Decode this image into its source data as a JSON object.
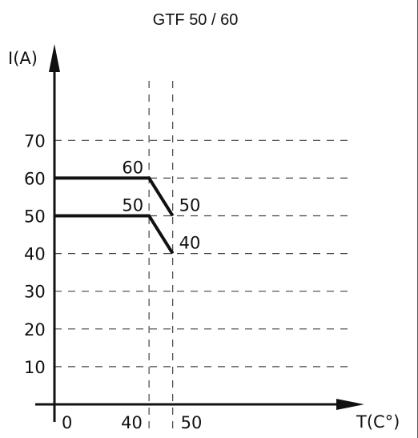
{
  "chart_data": {
    "type": "line",
    "title": "GTF 50 / 60",
    "xlabel": "T(C°)",
    "ylabel": "I(A)",
    "x_ticks": [
      "0",
      "40",
      "50"
    ],
    "x_tick_values": [
      0,
      40,
      50
    ],
    "y_ticks": [
      "10",
      "20",
      "30",
      "40",
      "50",
      "60",
      "70"
    ],
    "y_tick_values": [
      10,
      20,
      30,
      40,
      50,
      60,
      70
    ],
    "xlim": [
      0,
      80
    ],
    "ylim": [
      0,
      100
    ],
    "grid": true,
    "series": [
      {
        "x": [
          0,
          40,
          50
        ],
        "y": [
          60,
          60,
          50
        ],
        "labels": [
          {
            "x": 40,
            "y": 60,
            "text": "60"
          },
          {
            "x": 50,
            "y": 50,
            "text": "50"
          }
        ]
      },
      {
        "x": [
          0,
          40,
          50
        ],
        "y": [
          50,
          50,
          40
        ],
        "labels": [
          {
            "x": 40,
            "y": 50,
            "text": "50"
          },
          {
            "x": 50,
            "y": 40,
            "text": "40"
          }
        ]
      }
    ],
    "colors": {
      "line": "#111111",
      "axis": "#111111",
      "grid": "#444444"
    }
  }
}
